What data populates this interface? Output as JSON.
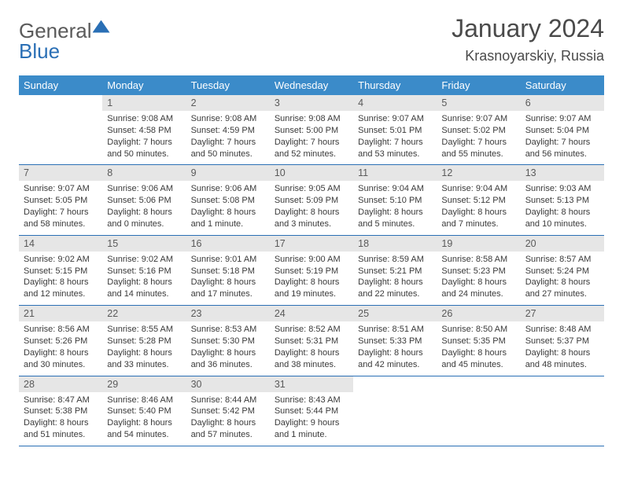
{
  "brand": {
    "part1": "General",
    "part2": "Blue"
  },
  "title": "January 2024",
  "location": "Krasnoyarskiy, Russia",
  "colors": {
    "header_bg": "#3b8bc9",
    "header_text": "#ffffff",
    "rule": "#2a6fb5",
    "daynum_bg": "#e6e6e6",
    "text": "#3a3a3a"
  },
  "day_headers": [
    "Sunday",
    "Monday",
    "Tuesday",
    "Wednesday",
    "Thursday",
    "Friday",
    "Saturday"
  ],
  "weeks": [
    [
      {
        "n": "",
        "sr": "",
        "ss": "",
        "dl": ""
      },
      {
        "n": "1",
        "sr": "9:08 AM",
        "ss": "4:58 PM",
        "dl": "7 hours and 50 minutes."
      },
      {
        "n": "2",
        "sr": "9:08 AM",
        "ss": "4:59 PM",
        "dl": "7 hours and 50 minutes."
      },
      {
        "n": "3",
        "sr": "9:08 AM",
        "ss": "5:00 PM",
        "dl": "7 hours and 52 minutes."
      },
      {
        "n": "4",
        "sr": "9:07 AM",
        "ss": "5:01 PM",
        "dl": "7 hours and 53 minutes."
      },
      {
        "n": "5",
        "sr": "9:07 AM",
        "ss": "5:02 PM",
        "dl": "7 hours and 55 minutes."
      },
      {
        "n": "6",
        "sr": "9:07 AM",
        "ss": "5:04 PM",
        "dl": "7 hours and 56 minutes."
      }
    ],
    [
      {
        "n": "7",
        "sr": "9:07 AM",
        "ss": "5:05 PM",
        "dl": "7 hours and 58 minutes."
      },
      {
        "n": "8",
        "sr": "9:06 AM",
        "ss": "5:06 PM",
        "dl": "8 hours and 0 minutes."
      },
      {
        "n": "9",
        "sr": "9:06 AM",
        "ss": "5:08 PM",
        "dl": "8 hours and 1 minute."
      },
      {
        "n": "10",
        "sr": "9:05 AM",
        "ss": "5:09 PM",
        "dl": "8 hours and 3 minutes."
      },
      {
        "n": "11",
        "sr": "9:04 AM",
        "ss": "5:10 PM",
        "dl": "8 hours and 5 minutes."
      },
      {
        "n": "12",
        "sr": "9:04 AM",
        "ss": "5:12 PM",
        "dl": "8 hours and 7 minutes."
      },
      {
        "n": "13",
        "sr": "9:03 AM",
        "ss": "5:13 PM",
        "dl": "8 hours and 10 minutes."
      }
    ],
    [
      {
        "n": "14",
        "sr": "9:02 AM",
        "ss": "5:15 PM",
        "dl": "8 hours and 12 minutes."
      },
      {
        "n": "15",
        "sr": "9:02 AM",
        "ss": "5:16 PM",
        "dl": "8 hours and 14 minutes."
      },
      {
        "n": "16",
        "sr": "9:01 AM",
        "ss": "5:18 PM",
        "dl": "8 hours and 17 minutes."
      },
      {
        "n": "17",
        "sr": "9:00 AM",
        "ss": "5:19 PM",
        "dl": "8 hours and 19 minutes."
      },
      {
        "n": "18",
        "sr": "8:59 AM",
        "ss": "5:21 PM",
        "dl": "8 hours and 22 minutes."
      },
      {
        "n": "19",
        "sr": "8:58 AM",
        "ss": "5:23 PM",
        "dl": "8 hours and 24 minutes."
      },
      {
        "n": "20",
        "sr": "8:57 AM",
        "ss": "5:24 PM",
        "dl": "8 hours and 27 minutes."
      }
    ],
    [
      {
        "n": "21",
        "sr": "8:56 AM",
        "ss": "5:26 PM",
        "dl": "8 hours and 30 minutes."
      },
      {
        "n": "22",
        "sr": "8:55 AM",
        "ss": "5:28 PM",
        "dl": "8 hours and 33 minutes."
      },
      {
        "n": "23",
        "sr": "8:53 AM",
        "ss": "5:30 PM",
        "dl": "8 hours and 36 minutes."
      },
      {
        "n": "24",
        "sr": "8:52 AM",
        "ss": "5:31 PM",
        "dl": "8 hours and 38 minutes."
      },
      {
        "n": "25",
        "sr": "8:51 AM",
        "ss": "5:33 PM",
        "dl": "8 hours and 42 minutes."
      },
      {
        "n": "26",
        "sr": "8:50 AM",
        "ss": "5:35 PM",
        "dl": "8 hours and 45 minutes."
      },
      {
        "n": "27",
        "sr": "8:48 AM",
        "ss": "5:37 PM",
        "dl": "8 hours and 48 minutes."
      }
    ],
    [
      {
        "n": "28",
        "sr": "8:47 AM",
        "ss": "5:38 PM",
        "dl": "8 hours and 51 minutes."
      },
      {
        "n": "29",
        "sr": "8:46 AM",
        "ss": "5:40 PM",
        "dl": "8 hours and 54 minutes."
      },
      {
        "n": "30",
        "sr": "8:44 AM",
        "ss": "5:42 PM",
        "dl": "8 hours and 57 minutes."
      },
      {
        "n": "31",
        "sr": "8:43 AM",
        "ss": "5:44 PM",
        "dl": "9 hours and 1 minute."
      },
      {
        "n": "",
        "sr": "",
        "ss": "",
        "dl": ""
      },
      {
        "n": "",
        "sr": "",
        "ss": "",
        "dl": ""
      },
      {
        "n": "",
        "sr": "",
        "ss": "",
        "dl": ""
      }
    ]
  ],
  "labels": {
    "sunrise": "Sunrise:",
    "sunset": "Sunset:",
    "daylight": "Daylight:"
  }
}
